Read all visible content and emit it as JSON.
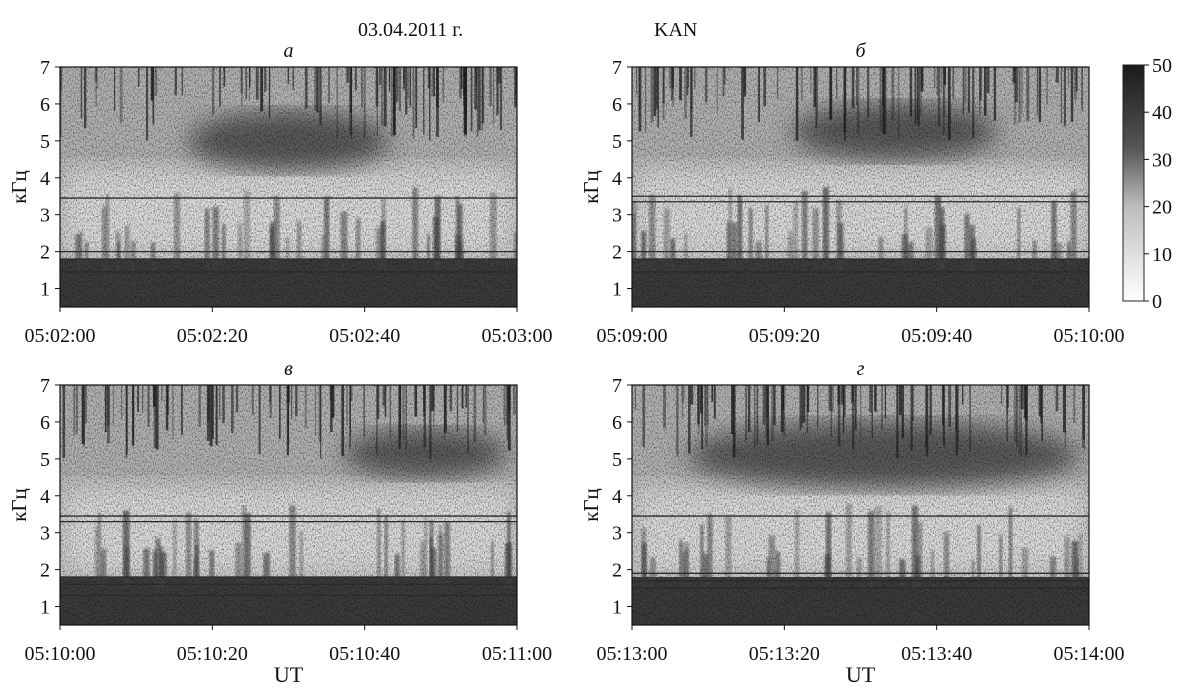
{
  "header": {
    "date": "03.04.2011 г.",
    "station": "KAN"
  },
  "colorbar": {
    "ticks": [
      "50",
      "40",
      "30",
      "20",
      "10",
      "0"
    ],
    "range": [
      0,
      50
    ],
    "colormap": "grayscale (white → black)"
  },
  "chart_data": [
    {
      "type": "heatmap",
      "panel": "а",
      "ylabel": "кГц",
      "xlabel": "",
      "ylim": [
        0.5,
        7
      ],
      "yticks": [
        "1",
        "2",
        "3",
        "4",
        "5",
        "6",
        "7"
      ],
      "xticks": [
        "05:02:00",
        "05:02:20",
        "05:02:40",
        "05:03:00"
      ],
      "features": {
        "hiss_band_khz": [
          4.2,
          5.8
        ],
        "hiss_time_frac": [
          0.28,
          0.72
        ],
        "lines_khz": [
          3.45,
          2.0,
          1.8,
          1.45
        ]
      }
    },
    {
      "type": "heatmap",
      "panel": "б",
      "ylabel": "кГц",
      "xlabel": "",
      "ylim": [
        0.5,
        7
      ],
      "yticks": [
        "1",
        "2",
        "3",
        "4",
        "5",
        "6",
        "7"
      ],
      "xticks": [
        "05:09:00",
        "05:09:20",
        "05:09:40",
        "05:10:00"
      ],
      "features": {
        "hiss_band_khz": [
          4.5,
          6.0
        ],
        "hiss_time_frac": [
          0.35,
          0.8
        ],
        "lines_khz": [
          3.5,
          3.35,
          2.0,
          1.8,
          1.45
        ]
      }
    },
    {
      "type": "heatmap",
      "panel": "в",
      "ylabel": "кГц",
      "xlabel": "UT",
      "ylim": [
        0.5,
        7
      ],
      "yticks": [
        "1",
        "2",
        "3",
        "4",
        "5",
        "6",
        "7"
      ],
      "xticks": [
        "05:10:00",
        "05:10:20",
        "05:10:40",
        "05:11:00"
      ],
      "features": {
        "hiss_band_khz": [
          4.5,
          5.8
        ],
        "hiss_time_frac": [
          0.62,
          0.98
        ],
        "lines_khz": [
          3.45,
          3.3,
          1.8,
          1.6,
          1.3
        ]
      }
    },
    {
      "type": "heatmap",
      "panel": "г",
      "ylabel": "кГц",
      "xlabel": "UT",
      "ylim": [
        0.5,
        7
      ],
      "yticks": [
        "1",
        "2",
        "3",
        "4",
        "5",
        "6",
        "7"
      ],
      "xticks": [
        "05:13:00",
        "05:13:20",
        "05:13:40",
        "05:14:00"
      ],
      "features": {
        "hiss_band_khz": [
          4.2,
          6.0
        ],
        "hiss_time_frac": [
          0.12,
          0.98
        ],
        "lines_khz": [
          3.45,
          1.9,
          1.7,
          1.5
        ]
      }
    }
  ]
}
